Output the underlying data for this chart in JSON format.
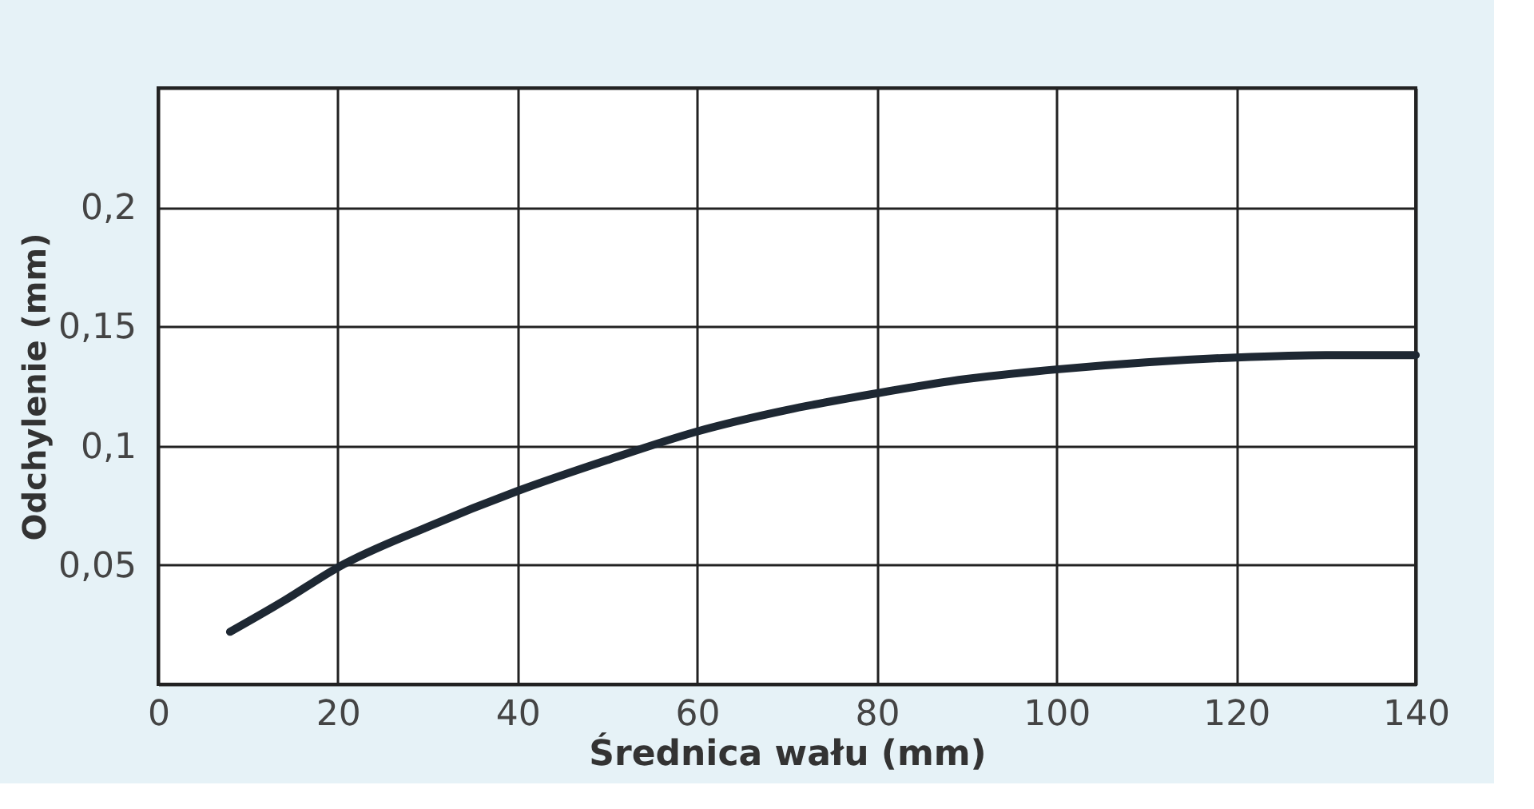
{
  "chart_data": {
    "type": "line",
    "xlabel": "Średnica wału (mm)",
    "ylabel": "Odchylenie (mm)",
    "x": [
      8,
      14,
      20,
      30,
      40,
      50,
      60,
      70,
      80,
      90,
      100,
      110,
      120,
      130,
      140
    ],
    "series": [
      {
        "color": "#1e2833",
        "values": [
          0.022,
          0.035,
          0.049,
          0.066,
          0.081,
          0.094,
          0.106,
          0.115,
          0.122,
          0.128,
          0.132,
          0.135,
          0.137,
          0.138,
          0.138
        ]
      }
    ],
    "xlim": [
      0,
      140
    ],
    "xticks": [
      0,
      20,
      40,
      60,
      80,
      100,
      120,
      140
    ],
    "ylim": [
      0,
      0.25
    ],
    "yticks": [
      {
        "value": 0,
        "label": null
      },
      {
        "value": 0.05,
        "label": "0,05"
      },
      {
        "value": 0.1,
        "label": "0,1"
      },
      {
        "value": 0.15,
        "label": "0,15"
      },
      {
        "value": 0.2,
        "label": "0,2"
      },
      {
        "value": 0.25,
        "label": null
      }
    ],
    "grid": true,
    "marker": "none",
    "line_style": "solid"
  }
}
